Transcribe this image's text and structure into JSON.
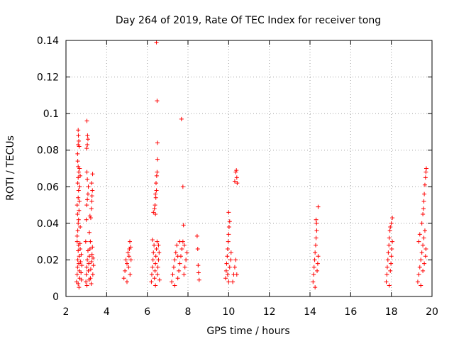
{
  "chart_data": {
    "type": "scatter",
    "title": "Day 264 of 2019, Rate Of TEC Index for receiver tong",
    "xlabel": "GPS time / hours",
    "ylabel": "ROTI / TECUs",
    "xlim": [
      2,
      20
    ],
    "ylim": [
      0,
      0.14
    ],
    "x_ticks": [
      2,
      4,
      6,
      8,
      10,
      12,
      14,
      16,
      18,
      20
    ],
    "x_tick_labels": [
      "2",
      "4",
      "6",
      "8",
      "10",
      "12",
      "14",
      "16",
      "18",
      "20"
    ],
    "y_ticks": [
      0,
      0.02,
      0.04,
      0.06,
      0.08,
      0.1,
      0.12,
      0.14
    ],
    "y_tick_labels": [
      "0",
      "0.02",
      "0.04",
      "0.06",
      "0.08",
      "0.1",
      "0.12",
      "0.14"
    ],
    "grid": true,
    "marker": "+",
    "marker_color": "#ff0000",
    "series": [
      {
        "name": "ROTI",
        "points": [
          [
            2.52,
            0.008
          ],
          [
            2.55,
            0.012
          ],
          [
            2.57,
            0.016
          ],
          [
            2.58,
            0.02
          ],
          [
            2.6,
            0.025
          ],
          [
            2.62,
            0.028
          ],
          [
            2.55,
            0.03
          ],
          [
            2.63,
            0.018
          ],
          [
            2.66,
            0.014
          ],
          [
            2.68,
            0.01
          ],
          [
            2.6,
            0.007
          ],
          [
            2.65,
            0.022
          ],
          [
            2.7,
            0.026
          ],
          [
            2.72,
            0.019
          ],
          [
            2.74,
            0.013
          ],
          [
            2.76,
            0.009
          ],
          [
            2.78,
            0.017
          ],
          [
            2.75,
            0.023
          ],
          [
            2.69,
            0.029
          ],
          [
            2.64,
            0.005
          ],
          [
            2.55,
            0.033
          ],
          [
            2.58,
            0.036
          ],
          [
            2.6,
            0.04
          ],
          [
            2.62,
            0.042
          ],
          [
            2.57,
            0.045
          ],
          [
            2.55,
            0.05
          ],
          [
            2.6,
            0.054
          ],
          [
            2.62,
            0.058
          ],
          [
            2.58,
            0.062
          ],
          [
            2.6,
            0.065
          ],
          [
            2.63,
            0.068
          ],
          [
            2.6,
            0.071
          ],
          [
            2.58,
            0.074
          ],
          [
            2.57,
            0.078
          ],
          [
            2.6,
            0.083
          ],
          [
            2.63,
            0.085
          ],
          [
            2.61,
            0.088
          ],
          [
            2.6,
            0.091
          ],
          [
            2.65,
            0.082
          ],
          [
            2.67,
            0.07
          ],
          [
            2.7,
            0.066
          ],
          [
            2.68,
            0.06
          ],
          [
            2.66,
            0.052
          ],
          [
            2.64,
            0.047
          ],
          [
            2.7,
            0.038
          ],
          [
            2.98,
            0.008
          ],
          [
            3.0,
            0.012
          ],
          [
            3.02,
            0.016
          ],
          [
            3.05,
            0.02
          ],
          [
            3.08,
            0.025
          ],
          [
            3.1,
            0.014
          ],
          [
            3.12,
            0.018
          ],
          [
            3.15,
            0.022
          ],
          [
            3.18,
            0.026
          ],
          [
            3.2,
            0.01
          ],
          [
            3.22,
            0.015
          ],
          [
            3.25,
            0.019
          ],
          [
            3.28,
            0.023
          ],
          [
            3.3,
            0.027
          ],
          [
            3.32,
            0.012
          ],
          [
            3.35,
            0.017
          ],
          [
            3.03,
            0.006
          ],
          [
            3.14,
            0.009
          ],
          [
            3.24,
            0.007
          ],
          [
            3.33,
            0.021
          ],
          [
            2.97,
            0.03
          ],
          [
            3.0,
            0.042
          ],
          [
            3.02,
            0.05
          ],
          [
            3.05,
            0.053
          ],
          [
            3.08,
            0.056
          ],
          [
            3.1,
            0.06
          ],
          [
            3.05,
            0.064
          ],
          [
            3.03,
            0.068
          ],
          [
            3.02,
            0.081
          ],
          [
            3.05,
            0.083
          ],
          [
            3.08,
            0.086
          ],
          [
            3.06,
            0.088
          ],
          [
            3.03,
            0.096
          ],
          [
            3.18,
            0.044
          ],
          [
            3.22,
            0.043
          ],
          [
            3.25,
            0.048
          ],
          [
            3.27,
            0.052
          ],
          [
            3.28,
            0.055
          ],
          [
            3.3,
            0.058
          ],
          [
            3.26,
            0.062
          ],
          [
            3.31,
            0.067
          ],
          [
            3.2,
            0.03
          ],
          [
            3.15,
            0.035
          ],
          [
            4.85,
            0.01
          ],
          [
            4.9,
            0.014
          ],
          [
            4.95,
            0.02
          ],
          [
            5.0,
            0.018
          ],
          [
            5.05,
            0.024
          ],
          [
            5.08,
            0.016
          ],
          [
            5.1,
            0.022
          ],
          [
            5.12,
            0.026
          ],
          [
            5.14,
            0.03
          ],
          [
            5.15,
            0.012
          ],
          [
            5.0,
            0.008
          ],
          [
            5.2,
            0.02
          ],
          [
            5.18,
            0.027
          ],
          [
            6.2,
            0.008
          ],
          [
            6.22,
            0.012
          ],
          [
            6.25,
            0.016
          ],
          [
            6.28,
            0.02
          ],
          [
            6.3,
            0.024
          ],
          [
            6.33,
            0.028
          ],
          [
            6.35,
            0.01
          ],
          [
            6.38,
            0.014
          ],
          [
            6.4,
            0.018
          ],
          [
            6.42,
            0.022
          ],
          [
            6.45,
            0.026
          ],
          [
            6.48,
            0.03
          ],
          [
            6.5,
            0.012
          ],
          [
            6.52,
            0.016
          ],
          [
            6.55,
            0.02
          ],
          [
            6.58,
            0.024
          ],
          [
            6.6,
            0.009
          ],
          [
            6.25,
            0.031
          ],
          [
            6.4,
            0.006
          ],
          [
            6.55,
            0.028
          ],
          [
            6.3,
            0.046
          ],
          [
            6.35,
            0.048
          ],
          [
            6.38,
            0.05
          ],
          [
            6.4,
            0.045
          ],
          [
            6.42,
            0.054
          ],
          [
            6.4,
            0.056
          ],
          [
            6.45,
            0.058
          ],
          [
            6.43,
            0.062
          ],
          [
            6.46,
            0.066
          ],
          [
            6.48,
            0.068
          ],
          [
            6.5,
            0.075
          ],
          [
            6.5,
            0.084
          ],
          [
            6.48,
            0.107
          ],
          [
            6.45,
            0.139
          ],
          [
            7.2,
            0.008
          ],
          [
            7.25,
            0.012
          ],
          [
            7.3,
            0.016
          ],
          [
            7.35,
            0.02
          ],
          [
            7.4,
            0.024
          ],
          [
            7.45,
            0.028
          ],
          [
            7.5,
            0.01
          ],
          [
            7.55,
            0.014
          ],
          [
            7.6,
            0.018
          ],
          [
            7.65,
            0.022
          ],
          [
            7.7,
            0.026
          ],
          [
            7.75,
            0.03
          ],
          [
            7.8,
            0.012
          ],
          [
            7.85,
            0.016
          ],
          [
            7.9,
            0.02
          ],
          [
            7.95,
            0.024
          ],
          [
            7.35,
            0.006
          ],
          [
            7.6,
            0.03
          ],
          [
            7.82,
            0.028
          ],
          [
            7.5,
            0.022
          ],
          [
            7.68,
            0.097
          ],
          [
            7.75,
            0.06
          ],
          [
            7.78,
            0.039
          ],
          [
            8.45,
            0.033
          ],
          [
            8.48,
            0.026
          ],
          [
            8.5,
            0.017
          ],
          [
            8.52,
            0.013
          ],
          [
            8.55,
            0.009
          ],
          [
            9.85,
            0.01
          ],
          [
            9.88,
            0.014
          ],
          [
            9.9,
            0.018
          ],
          [
            9.93,
            0.022
          ],
          [
            9.95,
            0.026
          ],
          [
            9.98,
            0.03
          ],
          [
            10.0,
            0.034
          ],
          [
            10.02,
            0.038
          ],
          [
            10.05,
            0.041
          ],
          [
            10.0,
            0.046
          ],
          [
            9.95,
            0.012
          ],
          [
            10.05,
            0.016
          ],
          [
            10.1,
            0.02
          ],
          [
            10.12,
            0.024
          ],
          [
            10.0,
            0.008
          ],
          [
            10.2,
            0.008
          ],
          [
            10.25,
            0.012
          ],
          [
            10.3,
            0.016
          ],
          [
            10.35,
            0.02
          ],
          [
            10.4,
            0.012
          ],
          [
            10.3,
            0.063
          ],
          [
            10.35,
            0.068
          ],
          [
            10.38,
            0.069
          ],
          [
            10.4,
            0.065
          ],
          [
            10.42,
            0.062
          ],
          [
            14.15,
            0.008
          ],
          [
            14.18,
            0.012
          ],
          [
            14.2,
            0.016
          ],
          [
            14.23,
            0.02
          ],
          [
            14.25,
            0.024
          ],
          [
            14.28,
            0.028
          ],
          [
            14.3,
            0.032
          ],
          [
            14.33,
            0.036
          ],
          [
            14.35,
            0.014
          ],
          [
            14.38,
            0.018
          ],
          [
            14.4,
            0.022
          ],
          [
            14.3,
            0.042
          ],
          [
            14.32,
            0.04
          ],
          [
            14.25,
            0.005
          ],
          [
            14.4,
            0.049
          ],
          [
            17.75,
            0.008
          ],
          [
            17.78,
            0.012
          ],
          [
            17.8,
            0.016
          ],
          [
            17.83,
            0.02
          ],
          [
            17.85,
            0.024
          ],
          [
            17.88,
            0.028
          ],
          [
            17.9,
            0.032
          ],
          [
            17.93,
            0.036
          ],
          [
            17.95,
            0.014
          ],
          [
            17.98,
            0.018
          ],
          [
            18.0,
            0.022
          ],
          [
            18.02,
            0.026
          ],
          [
            18.05,
            0.03
          ],
          [
            17.95,
            0.038
          ],
          [
            18.0,
            0.04
          ],
          [
            18.05,
            0.043
          ],
          [
            17.9,
            0.006
          ],
          [
            19.3,
            0.008
          ],
          [
            19.35,
            0.012
          ],
          [
            19.4,
            0.016
          ],
          [
            19.45,
            0.02
          ],
          [
            19.5,
            0.024
          ],
          [
            19.55,
            0.028
          ],
          [
            19.6,
            0.032
          ],
          [
            19.65,
            0.036
          ],
          [
            19.35,
            0.03
          ],
          [
            19.45,
            0.006
          ],
          [
            19.55,
            0.014
          ],
          [
            19.62,
            0.018
          ],
          [
            19.68,
            0.022
          ],
          [
            19.7,
            0.026
          ],
          [
            19.4,
            0.034
          ],
          [
            19.5,
            0.04
          ],
          [
            19.55,
            0.045
          ],
          [
            19.58,
            0.048
          ],
          [
            19.6,
            0.052
          ],
          [
            19.62,
            0.056
          ],
          [
            19.65,
            0.061
          ],
          [
            19.68,
            0.065
          ],
          [
            19.7,
            0.068
          ],
          [
            19.72,
            0.07
          ]
        ]
      }
    ]
  }
}
